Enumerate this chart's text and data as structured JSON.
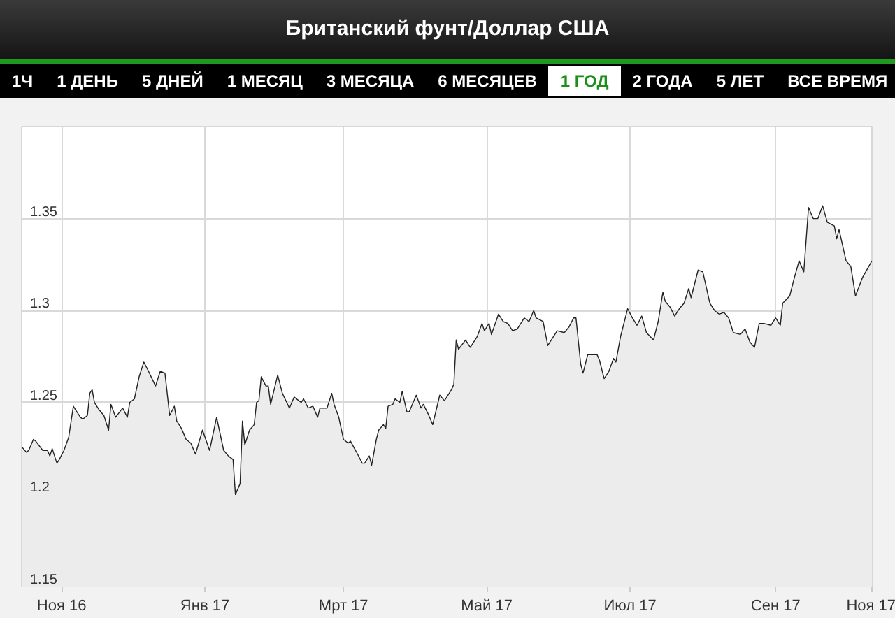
{
  "chart_data": {
    "type": "area",
    "title": "Британский фунт/Доллар США",
    "annotations": [
      "1Ч",
      "1 ДЕНЬ",
      "5 ДНЕЙ",
      "1 МЕСЯЦ",
      "3 МЕСЯЦА",
      "6 МЕСЯЦЕВ",
      "1 ГОД",
      "2 ГОДА",
      "5 ЛЕТ",
      "ВСЕ ВРЕМЯ"
    ],
    "xlim": [
      "2016-10-15",
      "2017-10-12"
    ],
    "ylim": [
      1.15,
      1.4
    ],
    "xticks": [
      {
        "value": "2016-11-01",
        "label": "Ноя 16"
      },
      {
        "value": "2017-01-01",
        "label": "Янв 17"
      },
      {
        "value": "2017-03-01",
        "label": "Мрт 17"
      },
      {
        "value": "2017-05-01",
        "label": "Май 17"
      },
      {
        "value": "2017-07-01",
        "label": "Июл 17"
      },
      {
        "value": "2017-09-01",
        "label": "Сен 17"
      },
      {
        "value": "2017-10-12",
        "label": "Ноя 17"
      }
    ],
    "yticks": [
      1.15,
      {
        "value": 1.2,
        "label": "1.2"
      },
      1.25,
      {
        "value": 1.3,
        "label": "1.3"
      },
      1.35
    ],
    "grid": true,
    "x": [
      "2016-10-15",
      "2016-10-17",
      "2016-10-18",
      "2016-10-20",
      "2016-10-21",
      "2016-10-24",
      "2016-10-26",
      "2016-10-27",
      "2016-10-28",
      "2016-10-30",
      "2016-10-31",
      "2016-11-02",
      "2016-11-04",
      "2016-11-06",
      "2016-11-07",
      "2016-11-09",
      "2016-11-10",
      "2016-11-12",
      "2016-11-13",
      "2016-11-14",
      "2016-11-15",
      "2016-11-17",
      "2016-11-19",
      "2016-11-21",
      "2016-11-22",
      "2016-11-24",
      "2016-11-27",
      "2016-11-29",
      "2016-11-30",
      "2016-12-02",
      "2016-12-04",
      "2016-12-06",
      "2016-12-08",
      "2016-12-11",
      "2016-12-13",
      "2016-12-15",
      "2016-12-17",
      "2016-12-19",
      "2016-12-20",
      "2016-12-22",
      "2016-12-24",
      "2016-12-26",
      "2016-12-28",
      "2016-12-31",
      "2017-01-03",
      "2017-01-06",
      "2017-01-09",
      "2017-01-11",
      "2017-01-13",
      "2017-01-14",
      "2017-01-16",
      "2017-01-17",
      "2017-01-18",
      "2017-01-20",
      "2017-01-22",
      "2017-01-23",
      "2017-01-24",
      "2017-01-25",
      "2017-01-27",
      "2017-01-28",
      "2017-01-29",
      "2017-02-01",
      "2017-02-03",
      "2017-02-06",
      "2017-02-08",
      "2017-02-11",
      "2017-02-12",
      "2017-02-14",
      "2017-02-16",
      "2017-02-18",
      "2017-02-19",
      "2017-02-22",
      "2017-02-24",
      "2017-02-25",
      "2017-02-27",
      "2017-03-01",
      "2017-03-03",
      "2017-03-04",
      "2017-03-07",
      "2017-03-09",
      "2017-03-10",
      "2017-03-12",
      "2017-03-13",
      "2017-03-15",
      "2017-03-16",
      "2017-03-18",
      "2017-03-19",
      "2017-03-20",
      "2017-03-22",
      "2017-03-23",
      "2017-03-25",
      "2017-03-26",
      "2017-03-28",
      "2017-03-29",
      "2017-04-01",
      "2017-04-03",
      "2017-04-04",
      "2017-04-06",
      "2017-04-08",
      "2017-04-11",
      "2017-04-13",
      "2017-04-16",
      "2017-04-17",
      "2017-04-18",
      "2017-04-19",
      "2017-04-22",
      "2017-04-24",
      "2017-04-27",
      "2017-04-29",
      "2017-04-30",
      "2017-05-02",
      "2017-05-03",
      "2017-05-06",
      "2017-05-08",
      "2017-05-10",
      "2017-05-12",
      "2017-05-14",
      "2017-05-17",
      "2017-05-19",
      "2017-05-21",
      "2017-05-22",
      "2017-05-25",
      "2017-05-27",
      "2017-05-31",
      "2017-06-03",
      "2017-06-05",
      "2017-06-07",
      "2017-06-08",
      "2017-06-10",
      "2017-06-11",
      "2017-06-13",
      "2017-06-17",
      "2017-06-18",
      "2017-06-20",
      "2017-06-22",
      "2017-06-24",
      "2017-06-25",
      "2017-06-27",
      "2017-06-30",
      "2017-07-02",
      "2017-07-04",
      "2017-07-06",
      "2017-07-08",
      "2017-07-11",
      "2017-07-13",
      "2017-07-15",
      "2017-07-16",
      "2017-07-18",
      "2017-07-20",
      "2017-07-22",
      "2017-07-24",
      "2017-07-26",
      "2017-07-27",
      "2017-07-30",
      "2017-08-01",
      "2017-08-04",
      "2017-08-06",
      "2017-08-08",
      "2017-08-10",
      "2017-08-12",
      "2017-08-14",
      "2017-08-17",
      "2017-08-19",
      "2017-08-21",
      "2017-08-23",
      "2017-08-25",
      "2017-08-27",
      "2017-08-30",
      "2017-09-01",
      "2017-09-03",
      "2017-09-04",
      "2017-09-07",
      "2017-09-09",
      "2017-09-11",
      "2017-09-13",
      "2017-09-15",
      "2017-09-17",
      "2017-09-19",
      "2017-09-21",
      "2017-09-23",
      "2017-09-26",
      "2017-09-27",
      "2017-09-28",
      "2017-10-01",
      "2017-10-03",
      "2017-10-05",
      "2017-10-08",
      "2017-10-12"
    ],
    "series": [
      {
        "color": "#222222",
        "values": [
          1.226,
          1.223,
          1.224,
          1.23,
          1.229,
          1.224,
          1.224,
          1.221,
          1.225,
          1.217,
          1.219,
          1.224,
          1.231,
          1.248,
          1.246,
          1.242,
          1.241,
          1.243,
          1.255,
          1.257,
          1.25,
          1.246,
          1.243,
          1.235,
          1.249,
          1.242,
          1.247,
          1.242,
          1.25,
          1.252,
          1.264,
          1.272,
          1.267,
          1.259,
          1.267,
          1.266,
          1.243,
          1.248,
          1.24,
          1.236,
          1.23,
          1.228,
          1.222,
          1.235,
          1.224,
          1.242,
          1.224,
          1.221,
          1.219,
          1.2,
          1.206,
          1.24,
          1.227,
          1.235,
          1.238,
          1.25,
          1.251,
          1.264,
          1.259,
          1.259,
          1.249,
          1.265,
          1.255,
          1.247,
          1.253,
          1.25,
          1.252,
          1.247,
          1.248,
          1.242,
          1.247,
          1.247,
          1.255,
          1.249,
          1.242,
          1.23,
          1.228,
          1.229,
          1.222,
          1.217,
          1.217,
          1.221,
          1.216,
          1.23,
          1.235,
          1.238,
          1.236,
          1.248,
          1.249,
          1.252,
          1.25,
          1.256,
          1.245,
          1.245,
          1.254,
          1.247,
          1.249,
          1.244,
          1.238,
          1.254,
          1.251,
          1.257,
          1.26,
          1.284,
          1.279,
          1.284,
          1.28,
          1.286,
          1.293,
          1.289,
          1.293,
          1.287,
          1.298,
          1.294,
          1.293,
          1.289,
          1.29,
          1.296,
          1.294,
          1.3,
          1.296,
          1.294,
          1.281,
          1.289,
          1.288,
          1.291,
          1.296,
          1.296,
          1.271,
          1.266,
          1.276,
          1.276,
          1.273,
          1.263,
          1.267,
          1.274,
          1.272,
          1.286,
          1.301,
          1.296,
          1.292,
          1.297,
          1.288,
          1.284,
          1.294,
          1.31,
          1.305,
          1.302,
          1.297,
          1.301,
          1.304,
          1.312,
          1.307,
          1.322,
          1.321,
          1.304,
          1.3,
          1.298,
          1.299,
          1.296,
          1.288,
          1.287,
          1.29,
          1.283,
          1.28,
          1.293,
          1.293,
          1.292,
          1.296,
          1.292,
          1.304,
          1.308,
          1.318,
          1.327,
          1.321,
          1.356,
          1.35,
          1.35,
          1.357,
          1.348,
          1.346,
          1.339,
          1.344,
          1.327,
          1.324,
          1.308,
          1.318,
          1.327
        ]
      }
    ]
  }
}
